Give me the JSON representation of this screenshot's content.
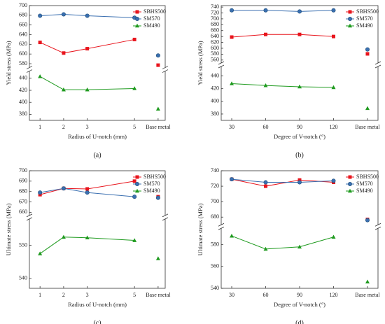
{
  "chart_data": [
    {
      "type": "line",
      "panel": "(a)",
      "x_label": "Radius of U-notch (mm)",
      "y_label": "Yield stress (MPa)",
      "x": [
        1,
        2,
        3,
        5
      ],
      "xlim": [
        0.55,
        6.3
      ],
      "xticks": [
        1,
        2,
        3,
        5,
        {
          "value": 6,
          "label": "Base metal"
        }
      ],
      "segments": [
        {
          "ylim": [
            370,
            452
          ],
          "yticks": [
            380,
            400,
            420,
            440
          ]
        },
        {
          "ylim": [
            572,
            700
          ],
          "yticks": [
            580,
            600,
            620,
            640,
            660,
            680,
            700
          ]
        }
      ],
      "legend": "upper right",
      "series": [
        {
          "name": "SBHS500",
          "color": "#e8141c",
          "marker": "square",
          "values": [
            624,
            602,
            611,
            630
          ],
          "base_metal": 577
        },
        {
          "name": "SM570",
          "color": "#3a6fb0",
          "marker": "circle",
          "values": [
            679,
            682,
            679,
            675
          ],
          "base_metal": 597
        },
        {
          "name": "SM490",
          "color": "#1e9a1e",
          "marker": "triangle",
          "values": [
            443,
            421,
            421,
            423
          ],
          "base_metal": 389
        }
      ]
    },
    {
      "type": "line",
      "panel": "(b)",
      "x_label": "Degree of V-notch (°)",
      "y_label": "Yield stress (MPa)",
      "x": [
        30,
        60,
        90,
        120
      ],
      "xlim": [
        20.7,
        159.3
      ],
      "xticks": [
        30,
        60,
        90,
        120,
        {
          "value": 150,
          "label": "Base metal"
        }
      ],
      "segments": [
        {
          "ylim": [
            370,
            455
          ],
          "yticks": [
            380,
            400,
            420,
            440
          ]
        },
        {
          "ylim": [
            550,
            745
          ],
          "yticks": [
            560,
            580,
            600,
            620,
            640,
            660,
            680,
            700,
            720,
            740
          ]
        }
      ],
      "legend": "upper right",
      "series": [
        {
          "name": "SBHS500",
          "color": "#e8141c",
          "marker": "square",
          "values": [
            638,
            647,
            647,
            640
          ],
          "base_metal": 581
        },
        {
          "name": "SM570",
          "color": "#3a6fb0",
          "marker": "circle",
          "values": [
            729,
            729,
            725,
            729
          ],
          "base_metal": 596
        },
        {
          "name": "SM490",
          "color": "#1e9a1e",
          "marker": "triangle",
          "values": [
            428,
            425,
            423,
            422
          ],
          "base_metal": 389
        }
      ]
    },
    {
      "type": "line",
      "panel": "(c)",
      "x_label": "Radius of U-notch (mm)",
      "y_label": "Ultimate stress (MPa)",
      "x": [
        1,
        2,
        3,
        5
      ],
      "xlim": [
        0.55,
        6.3
      ],
      "xticks": [
        1,
        2,
        3,
        5,
        {
          "value": 6,
          "label": "Base metal"
        }
      ],
      "segments": [
        {
          "ylim": [
            537,
            558
          ],
          "yticks": [
            540,
            550
          ]
        },
        {
          "ylim": [
            657,
            700
          ],
          "yticks": [
            660,
            670,
            680,
            690,
            700
          ]
        }
      ],
      "legend": "upper right",
      "series": [
        {
          "name": "SBHS500",
          "color": "#e8141c",
          "marker": "square",
          "values": [
            677,
            683,
            682.5,
            690
          ],
          "base_metal": 675
        },
        {
          "name": "SM570",
          "color": "#3a6fb0",
          "marker": "circle",
          "values": [
            679,
            683,
            679,
            675
          ],
          "base_metal": 674
        },
        {
          "name": "SM490",
          "color": "#1e9a1e",
          "marker": "triangle",
          "values": [
            547.5,
            552.5,
            552.3,
            551.5
          ],
          "base_metal": 546
        }
      ]
    },
    {
      "type": "line",
      "panel": "(d)",
      "x_label": "Degree of V-notch (°)",
      "y_label": "Ultimate stress (MPa)",
      "x": [
        30,
        60,
        90,
        120
      ],
      "xlim": [
        20.7,
        159.3
      ],
      "xticks": [
        30,
        60,
        90,
        120,
        {
          "value": 150,
          "label": "Base metal"
        }
      ],
      "segments": [
        {
          "ylim": [
            540,
            595
          ],
          "yticks": [
            540,
            560,
            580
          ]
        },
        {
          "ylim": [
            670,
            740
          ],
          "yticks": [
            680,
            700,
            720,
            740
          ]
        }
      ],
      "legend": "upper right",
      "series": [
        {
          "name": "SBHS500",
          "color": "#e8141c",
          "marker": "square",
          "values": [
            729,
            720,
            728,
            725
          ],
          "base_metal": 677
        },
        {
          "name": "SM570",
          "color": "#3a6fb0",
          "marker": "circle",
          "values": [
            729,
            725,
            725,
            727
          ],
          "base_metal": 676
        },
        {
          "name": "SM490",
          "color": "#1e9a1e",
          "marker": "triangle",
          "values": [
            588,
            576,
            578,
            587
          ],
          "base_metal": 546
        }
      ]
    }
  ]
}
